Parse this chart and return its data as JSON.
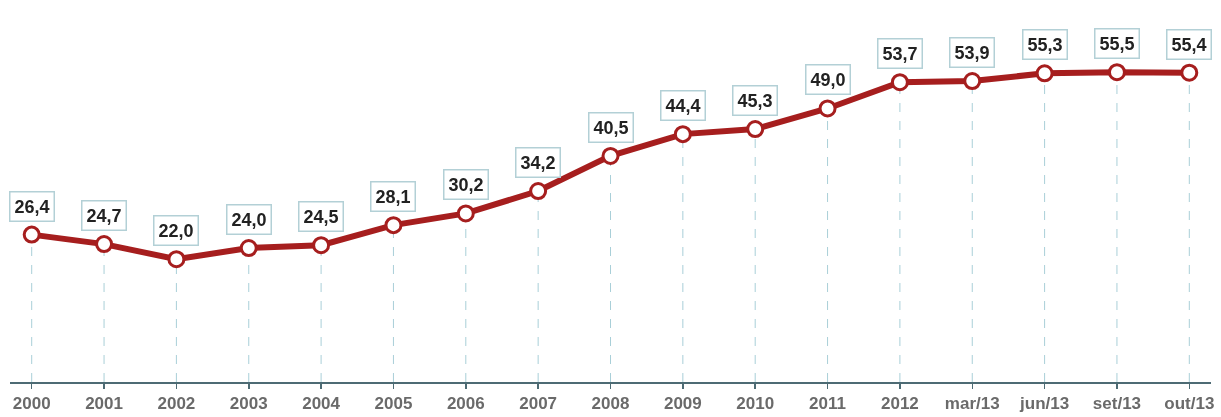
{
  "chart_data": {
    "type": "line",
    "categories": [
      "2000",
      "2001",
      "2002",
      "2003",
      "2004",
      "2005",
      "2006",
      "2007",
      "2008",
      "2009",
      "2010",
      "2011",
      "2012",
      "mar/13",
      "jun/13",
      "set/13",
      "out/13"
    ],
    "values": [
      26.4,
      24.7,
      22.0,
      24.0,
      24.5,
      28.1,
      30.2,
      34.2,
      40.5,
      44.4,
      45.3,
      49.0,
      53.7,
      53.9,
      55.3,
      55.5,
      55.4
    ],
    "value_labels": [
      "26,4",
      "24,7",
      "22,0",
      "24,0",
      "24,5",
      "28,1",
      "30,2",
      "34,2",
      "40,5",
      "44,4",
      "45,3",
      "49,0",
      "53,7",
      "53,9",
      "55,3",
      "55,5",
      "55,4"
    ],
    "color": "#a61e1e",
    "marker": "circle",
    "grid": "x"
  }
}
